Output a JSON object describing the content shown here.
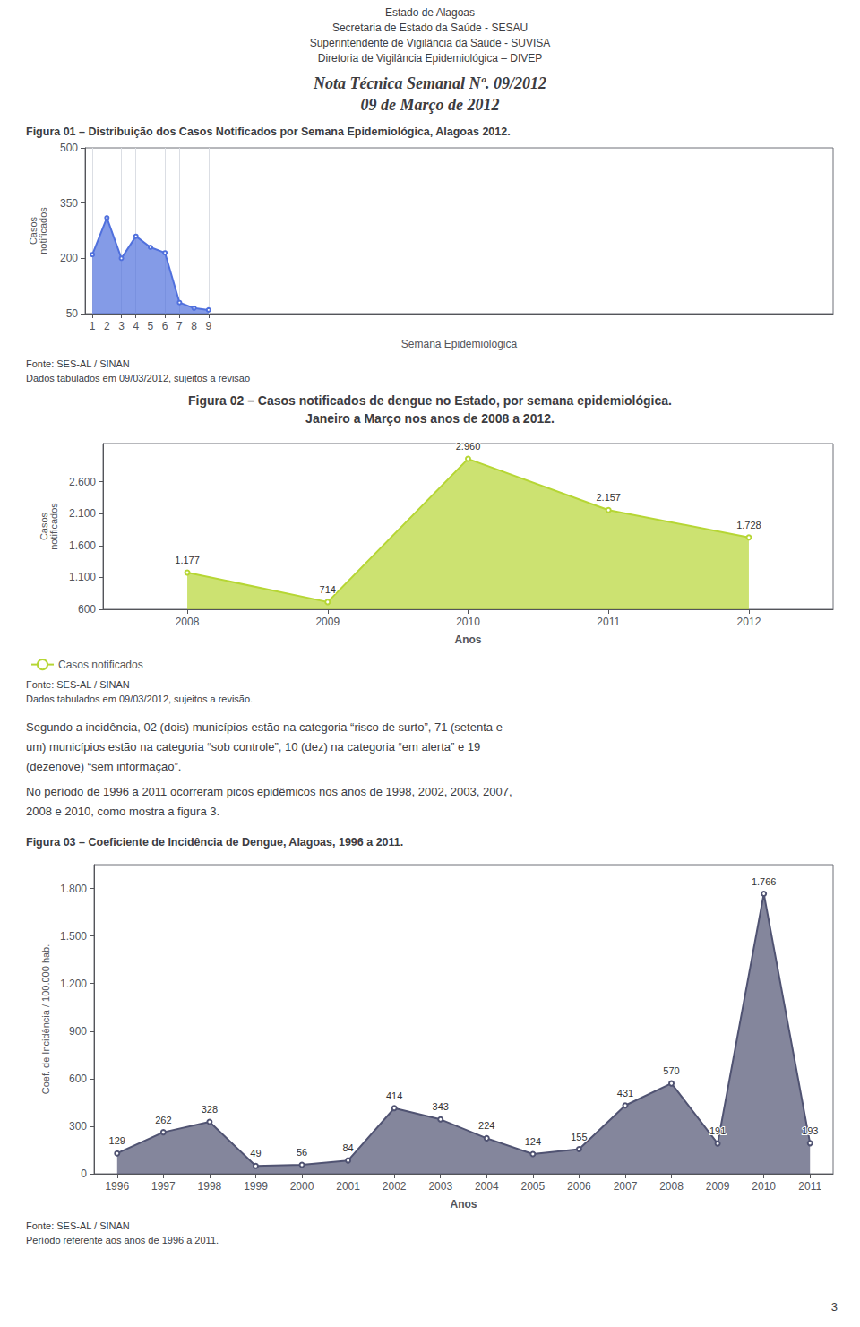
{
  "chart_data": [
    {
      "type": "line",
      "title": "Figura 01 – Distribuição dos Casos Notificados por Semana Epidemiológica, Alagoas 2012.",
      "annotations": [
        "Estado de Alagoas",
        "Secretaria de Estado da Saúde - SESAU",
        "Superintendente de Vigilância da Saúde - SUVISA",
        "Diretoria de Vigilância Epidemiológica – DIVEP",
        "Nota Técnica Semanal Nº. 09/2012",
        "09 de Março de 2012",
        "Fonte: SES-AL / SINAN",
        "Dados tabulados em 09/03/2012, sujeitos a revisão"
      ],
      "xlabel": "Semana Epidemiológica",
      "ylabel": "Casos\nnotificados",
      "x": [
        1,
        2,
        3,
        4,
        5,
        6,
        7,
        8,
        9
      ],
      "values": [
        210,
        310,
        200,
        260,
        230,
        215,
        80,
        65,
        60
      ],
      "xlim": [
        0.5,
        52
      ],
      "xticks": [
        1,
        2,
        3,
        4,
        5,
        6,
        7,
        8,
        9
      ],
      "ylim": [
        50,
        500
      ],
      "yticks": [
        50,
        200,
        350,
        500
      ],
      "grid": "x",
      "data_labels": false
    },
    {
      "type": "line",
      "title": "Figura 02 – Casos notificados de dengue no Estado, por semana epidemiológica.",
      "subtitle": "Janeiro a Março nos anos de 2008 a 2012.",
      "annotations": [
        "Fonte: SES-AL / SINAN",
        "Dados tabulados em 09/03/2012, sujeitos a revisão.",
        "Segundo a incidência, 02 (dois) municípios estão na categoria “risco de surto”, 71 (setenta e",
        "um) municípios estão na categoria “sob controle”, 10 (dez) na categoria “em alerta” e 19",
        "(dezenove) “sem informação”.",
        "No período de 1996 a 2011 ocorreram picos epidêmicos nos anos de 1998, 2002, 2003, 2007,",
        "2008 e 2010, como mostra a figura 3."
      ],
      "xlabel": "Anos",
      "ylabel": "Casos\nnotificados",
      "x": [
        2008,
        2009,
        2010,
        2011,
        2012
      ],
      "series": [
        {
          "name": "Casos notificados",
          "values": [
            1177,
            714,
            2960,
            2157,
            1728
          ],
          "value_labels": [
            "1.177",
            "714",
            "2.960",
            "2.157",
            "1.728"
          ]
        }
      ],
      "xlim": [
        2007.4,
        2012.6
      ],
      "xticks": [
        2008,
        2009,
        2010,
        2011,
        2012
      ],
      "ylim": [
        600,
        3200
      ],
      "yticks": [
        600,
        {
          "value": 1100,
          "label": "1.100"
        },
        {
          "value": 1600,
          "label": "1.600"
        },
        {
          "value": 2100,
          "label": "2.100"
        },
        {
          "value": 2600,
          "label": "2.600"
        }
      ],
      "grid": false,
      "legend": "bottom left",
      "data_labels": true
    },
    {
      "type": "line",
      "title": "Figura 03 – Coeficiente de Incidência de Dengue, Alagoas, 1996 a 2011.",
      "annotations": [
        "Fonte: SES-AL / SINAN",
        "Período referente aos anos de 1996 a 2011.",
        "3"
      ],
      "xlabel": "Anos",
      "ylabel": "Coef. de Incidência / 100.000 hab.",
      "x": [
        1996,
        1997,
        1998,
        1999,
        2000,
        2001,
        2002,
        2003,
        2004,
        2005,
        2006,
        2007,
        2008,
        2009,
        2010,
        2011
      ],
      "values": [
        129,
        262,
        328,
        49,
        56,
        84,
        414,
        343,
        224,
        124,
        155,
        431,
        570,
        191,
        1766,
        193
      ],
      "value_labels": [
        "129",
        "262",
        "328",
        "49",
        "56",
        "84",
        "414",
        "343",
        "224",
        "124",
        "155",
        "431",
        "570",
        "191",
        "1.766",
        "193"
      ],
      "xlim": [
        1995.5,
        2011.5
      ],
      "xticks": [
        1996,
        1997,
        1998,
        1999,
        2000,
        2001,
        2002,
        2003,
        2004,
        2005,
        2006,
        2007,
        2008,
        2009,
        2010,
        2011
      ],
      "ylim": [
        0,
        1950
      ],
      "yticks": [
        0,
        300,
        600,
        900,
        {
          "value": 1200,
          "label": "1.200"
        },
        {
          "value": 1500,
          "label": "1.500"
        },
        {
          "value": 1800,
          "label": "1.800"
        }
      ],
      "grid": false,
      "data_labels": true
    }
  ]
}
